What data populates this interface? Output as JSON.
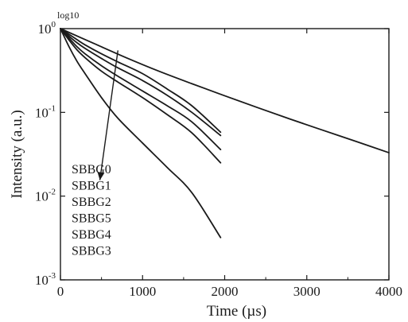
{
  "chart_data": {
    "type": "line",
    "xlabel": "Time (µs)",
    "ylabel": "Intensity (a.u.)",
    "scale_note": "log10",
    "x_scale": "linear",
    "y_scale": "log",
    "xlim": [
      0,
      4000
    ],
    "ylim": [
      0.001,
      1
    ],
    "x_ticks": [
      {
        "value": 0,
        "label": "0"
      },
      {
        "value": 1000,
        "label": "1000"
      },
      {
        "value": 2000,
        "label": "2000"
      },
      {
        "value": 3000,
        "label": "3000"
      },
      {
        "value": 4000,
        "label": "4000"
      }
    ],
    "y_ticks": [
      {
        "value": 1,
        "base": "10",
        "exp": "0"
      },
      {
        "value": 0.1,
        "base": "10",
        "exp": "-1"
      },
      {
        "value": 0.01,
        "base": "10",
        "exp": "-2"
      },
      {
        "value": 0.001,
        "base": "10",
        "exp": "-3"
      }
    ],
    "grid": false,
    "legend_position": "center-left",
    "legend_entries": [
      "SBBG0",
      "SBBG1",
      "SBBG2",
      "SBBG5",
      "SBBG4",
      "SBBG3"
    ],
    "arrow": {
      "from": {
        "x": 700,
        "y": 0.55
      },
      "to": {
        "x": 480,
        "y": 0.0155
      }
    },
    "series": [
      {
        "x": [
          0,
          400,
          800,
          1200,
          1600,
          2000,
          2400,
          2800,
          3200,
          3600,
          4000
        ],
        "values": [
          1,
          0.67,
          0.45,
          0.31,
          0.22,
          0.158,
          0.114,
          0.083,
          0.061,
          0.045,
          0.033
        ]
      },
      {
        "x": [
          0,
          100,
          200,
          300,
          500,
          700,
          1000,
          1300,
          1600,
          1950
        ],
        "values": [
          1,
          0.86,
          0.74,
          0.64,
          0.5,
          0.4,
          0.29,
          0.19,
          0.12,
          0.058
        ]
      },
      {
        "x": [
          0,
          100,
          200,
          300,
          500,
          700,
          1000,
          1300,
          1600,
          1950
        ],
        "values": [
          1,
          0.82,
          0.68,
          0.58,
          0.44,
          0.34,
          0.24,
          0.16,
          0.1,
          0.053
        ]
      },
      {
        "x": [
          0,
          100,
          200,
          300,
          500,
          700,
          1000,
          1300,
          1600,
          1950
        ],
        "values": [
          1,
          0.78,
          0.61,
          0.5,
          0.36,
          0.27,
          0.18,
          0.12,
          0.077,
          0.036
        ]
      },
      {
        "x": [
          0,
          100,
          200,
          300,
          500,
          700,
          1000,
          1300,
          1600,
          1950
        ],
        "values": [
          1,
          0.74,
          0.56,
          0.45,
          0.31,
          0.23,
          0.15,
          0.094,
          0.057,
          0.025
        ]
      },
      {
        "x": [
          0,
          100,
          200,
          300,
          500,
          700,
          1000,
          1300,
          1600,
          1950
        ],
        "values": [
          1,
          0.62,
          0.41,
          0.29,
          0.15,
          0.085,
          0.043,
          0.022,
          0.011,
          0.0032
        ]
      }
    ]
  }
}
